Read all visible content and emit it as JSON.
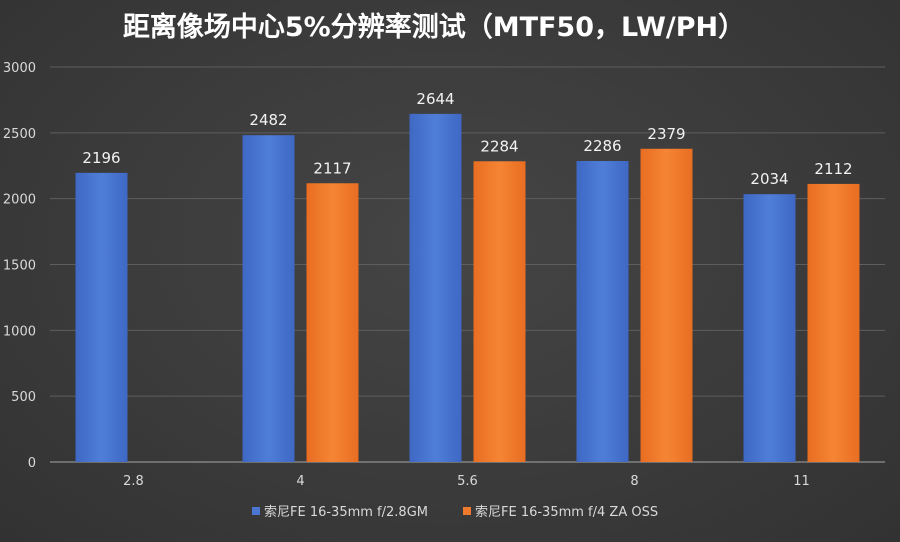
{
  "chart_data": {
    "type": "bar",
    "title": "距离像场中心5%分辨率测试（MTF50，LW/PH）",
    "categories": [
      "2.8",
      "4",
      "5.6",
      "8",
      "11"
    ],
    "series": [
      {
        "name": "索尼FE 16-35mm f/2.8GM",
        "color": "#4a76d0",
        "values": [
          2196,
          2482,
          2644,
          2286,
          2034
        ]
      },
      {
        "name": "索尼FE 16-35mm f/4 ZA OSS",
        "color": "#ef7a2e",
        "values": [
          null,
          2117,
          2284,
          2379,
          2112
        ]
      }
    ],
    "yticks": [
      0,
      500,
      1000,
      1500,
      2000,
      2500,
      3000
    ],
    "ylim": [
      0,
      3000
    ],
    "xlabel": "",
    "ylabel": "",
    "grid": true,
    "legend_position": "bottom"
  },
  "colors": {
    "grid": "#5e5e5e",
    "axis": "#a6a6a6"
  }
}
